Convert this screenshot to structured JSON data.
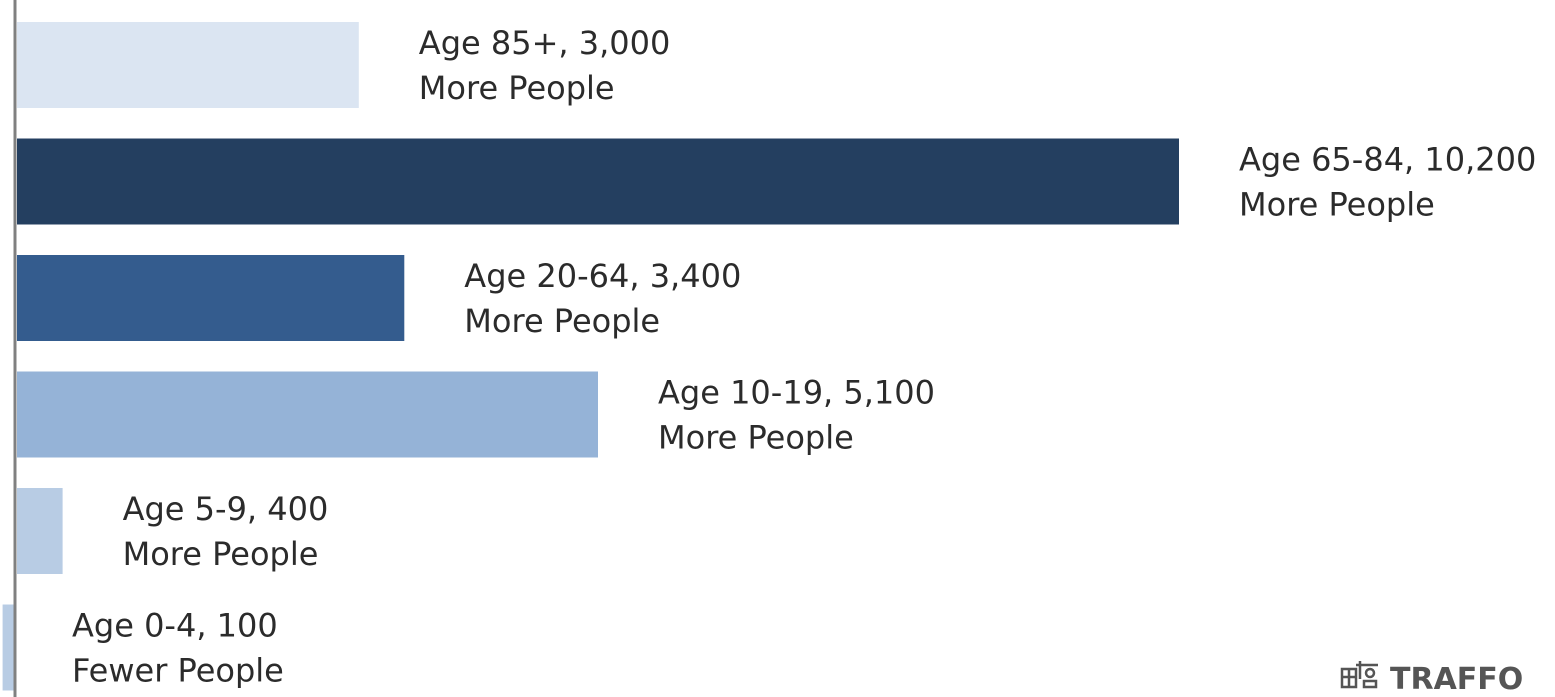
{
  "chart_data": {
    "type": "bar",
    "orientation": "horizontal",
    "categories": [
      "Age 85+",
      "Age 65-84",
      "Age 20-64",
      "Age 10-19",
      "Age 5-9",
      "Age 0-4"
    ],
    "values": [
      3000,
      10200,
      3400,
      5100,
      400,
      -100
    ],
    "labels": [
      {
        "line1": "Age 85+, 3,000",
        "line2": "More People"
      },
      {
        "line1": "Age 65-84, 10,200",
        "line2": "More People"
      },
      {
        "line1": "Age 20-64, 3,400",
        "line2": "More People"
      },
      {
        "line1": "Age 10-19, 5,100",
        "line2": "More People"
      },
      {
        "line1": "Age 5-9, 400",
        "line2": "More People"
      },
      {
        "line1": "Age 0-4, 100",
        "line2": "Fewer People"
      }
    ],
    "colors": [
      "#dbe5f2",
      "#243f60",
      "#345c8e",
      "#95b3d7",
      "#b8cce4",
      "#b8cce4"
    ],
    "axis_color": "#808080",
    "grid": false,
    "legend": "none"
  },
  "logo": {
    "text": "TRAFFO",
    "icon": "traffo-logo-icon"
  }
}
